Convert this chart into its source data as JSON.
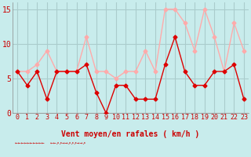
{
  "xlabel": "Vent moyen/en rafales ( km/h )",
  "x_values": [
    0,
    1,
    2,
    3,
    4,
    5,
    6,
    7,
    8,
    9,
    10,
    11,
    12,
    13,
    14,
    15,
    16,
    17,
    18,
    19,
    20,
    21,
    22,
    23
  ],
  "y_mean": [
    6,
    4,
    6,
    2,
    6,
    6,
    6,
    7,
    3,
    0,
    4,
    4,
    2,
    2,
    2,
    7,
    11,
    6,
    4,
    4,
    6,
    6,
    7,
    2
  ],
  "y_gust": [
    6,
    6,
    7,
    9,
    6,
    6,
    6,
    11,
    6,
    6,
    5,
    6,
    6,
    9,
    6,
    15,
    15,
    13,
    9,
    15,
    11,
    6,
    13,
    9
  ],
  "color_mean": "#dd0000",
  "color_gust": "#ffaaaa",
  "background_color": "#c8ecec",
  "grid_color": "#aacccc",
  "ylim": [
    0,
    16
  ],
  "yticks": [
    0,
    5,
    10,
    15
  ],
  "xlabel_color": "#cc0000",
  "xlabel_fontsize": 7,
  "tick_fontsize": 6,
  "arrows": "←←←←←←←←←←   ←←↗↗→→↗↗⤴→→↗"
}
